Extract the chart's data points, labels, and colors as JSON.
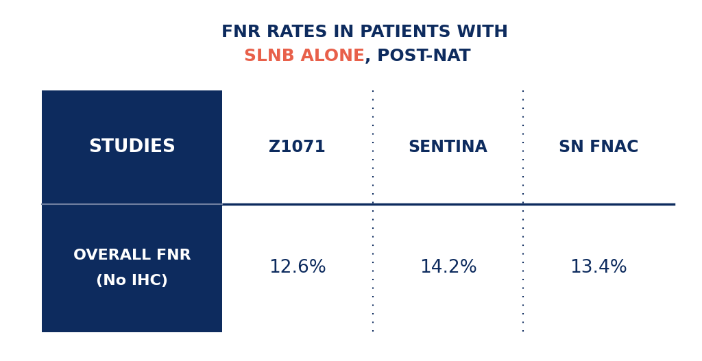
{
  "title_line1": "FNR RATES IN PATIENTS WITH",
  "title_line2_colored": "SLNB ALONE",
  "title_line2_rest": ", POST-NAT",
  "col_header_0": "STUDIES",
  "col_header_1": "Z1071",
  "col_header_2": "SENTINA",
  "col_header_3": "SN FNAC",
  "row_label_line1": "OVERALL FNR",
  "row_label_line2": "(No IHC)",
  "row_values": [
    "12.6%",
    "14.2%",
    "13.4%"
  ],
  "dark_blue": "#0d2b5e",
  "orange_red": "#e8604a",
  "bg_color": "#ffffff",
  "white": "#ffffff",
  "title_fontsize": 18,
  "header_fontsize": 17,
  "value_fontsize": 19,
  "label_fontsize": 16
}
